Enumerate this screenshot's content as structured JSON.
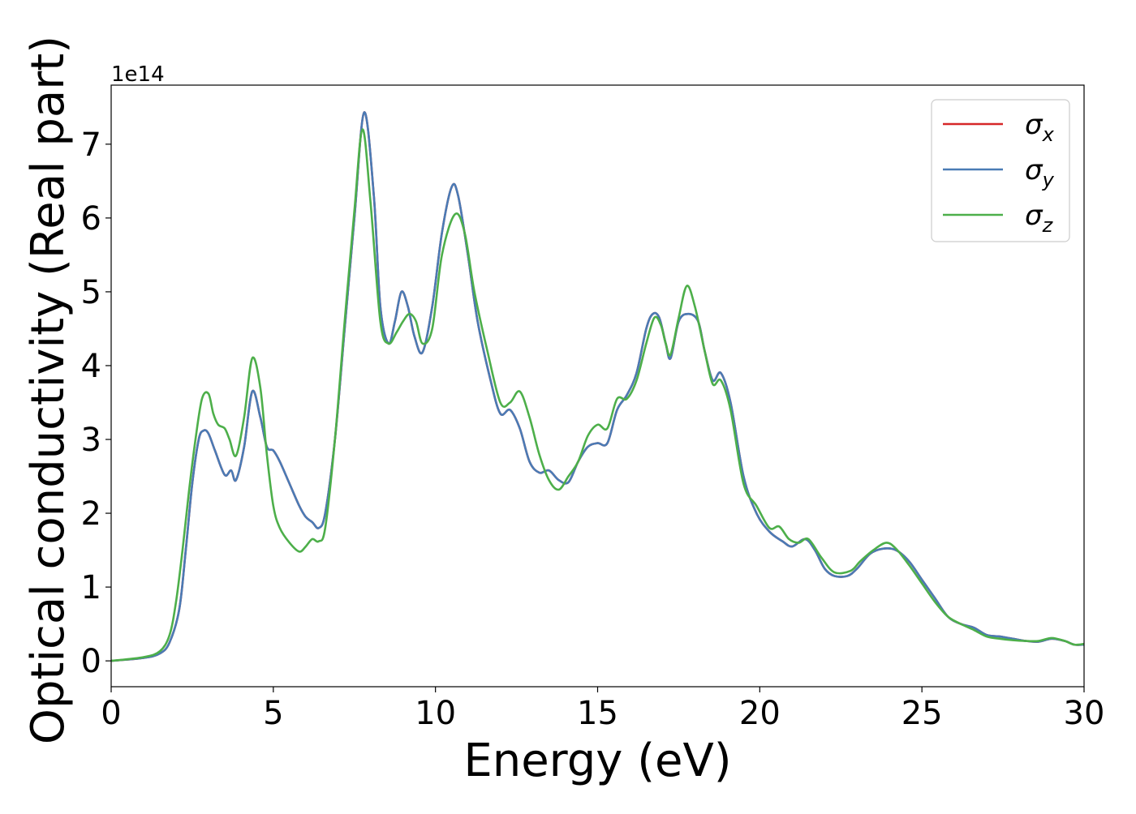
{
  "chart_data": {
    "type": "line",
    "title": "",
    "xlabel": "Energy (eV)",
    "ylabel": "Optical conductivity (Real part)",
    "y_offset_label": "1e14",
    "xlim": [
      0,
      30
    ],
    "ylim": [
      -0.35,
      7.8
    ],
    "xticks": [
      0,
      5,
      10,
      15,
      20,
      25,
      30
    ],
    "xtick_labels": [
      "0",
      "5",
      "10",
      "15",
      "20",
      "25",
      "30"
    ],
    "yticks": [
      0,
      1,
      2,
      3,
      4,
      5,
      6,
      7
    ],
    "ytick_labels": [
      "0",
      "1",
      "2",
      "3",
      "4",
      "5",
      "6",
      "7"
    ],
    "grid": false,
    "legend_position": "top-right",
    "series": [
      {
        "name": "σx",
        "symbol": "σ",
        "subscript": "x",
        "color": "#d62728",
        "x": [
          0,
          1,
          1.5,
          1.8,
          2.1,
          2.3,
          2.5,
          2.7,
          2.85,
          3.0,
          3.2,
          3.5,
          3.7,
          3.85,
          4.1,
          4.35,
          4.6,
          4.8,
          5.0,
          5.2,
          5.5,
          5.8,
          6.0,
          6.2,
          6.4,
          6.6,
          6.9,
          7.2,
          7.5,
          7.8,
          8.1,
          8.3,
          8.55,
          8.75,
          8.95,
          9.15,
          9.35,
          9.6,
          9.9,
          10.2,
          10.5,
          10.7,
          11.0,
          11.3,
          11.7,
          12.0,
          12.3,
          12.6,
          12.9,
          13.2,
          13.5,
          13.8,
          14.1,
          14.4,
          14.7,
          15.0,
          15.3,
          15.6,
          15.9,
          16.2,
          16.5,
          16.7,
          16.9,
          17.1,
          17.25,
          17.5,
          17.8,
          18.1,
          18.3,
          18.55,
          18.8,
          19.1,
          19.5,
          19.9,
          20.3,
          20.7,
          21.0,
          21.4,
          21.7,
          22.0,
          22.3,
          22.7,
          23.0,
          23.4,
          23.8,
          24.2,
          24.6,
          25.0,
          25.4,
          25.8,
          26.2,
          26.6,
          27.0,
          27.4,
          27.8,
          28.2,
          28.6,
          29.0,
          29.4,
          29.7,
          30.0
        ],
        "values": [
          0,
          0.04,
          0.1,
          0.25,
          0.7,
          1.5,
          2.4,
          3.0,
          3.12,
          3.08,
          2.85,
          2.52,
          2.58,
          2.45,
          2.9,
          3.65,
          3.3,
          2.9,
          2.85,
          2.7,
          2.4,
          2.1,
          1.95,
          1.88,
          1.8,
          2.0,
          3.0,
          4.5,
          6.0,
          7.43,
          6.3,
          4.8,
          4.3,
          4.6,
          5.0,
          4.8,
          4.4,
          4.18,
          4.8,
          5.8,
          6.42,
          6.3,
          5.5,
          4.6,
          3.8,
          3.35,
          3.4,
          3.15,
          2.7,
          2.55,
          2.58,
          2.45,
          2.42,
          2.7,
          2.9,
          2.95,
          2.95,
          3.4,
          3.6,
          3.9,
          4.5,
          4.7,
          4.65,
          4.3,
          4.1,
          4.6,
          4.7,
          4.6,
          4.2,
          3.8,
          3.9,
          3.5,
          2.5,
          2.0,
          1.75,
          1.62,
          1.55,
          1.65,
          1.5,
          1.25,
          1.15,
          1.15,
          1.25,
          1.45,
          1.52,
          1.5,
          1.35,
          1.1,
          0.85,
          0.6,
          0.5,
          0.45,
          0.35,
          0.33,
          0.3,
          0.27,
          0.26,
          0.3,
          0.27,
          0.22,
          0.22
        ]
      },
      {
        "name": "σy",
        "symbol": "σ",
        "subscript": "y",
        "color": "#4a7bb5",
        "x": [
          0,
          1,
          1.5,
          1.8,
          2.1,
          2.3,
          2.5,
          2.7,
          2.85,
          3.0,
          3.2,
          3.5,
          3.7,
          3.85,
          4.1,
          4.35,
          4.6,
          4.8,
          5.0,
          5.2,
          5.5,
          5.8,
          6.0,
          6.2,
          6.4,
          6.6,
          6.9,
          7.2,
          7.5,
          7.8,
          8.1,
          8.3,
          8.55,
          8.75,
          8.95,
          9.15,
          9.35,
          9.6,
          9.9,
          10.2,
          10.5,
          10.7,
          11.0,
          11.3,
          11.7,
          12.0,
          12.3,
          12.6,
          12.9,
          13.2,
          13.5,
          13.8,
          14.1,
          14.4,
          14.7,
          15.0,
          15.3,
          15.6,
          15.9,
          16.2,
          16.5,
          16.7,
          16.9,
          17.1,
          17.25,
          17.5,
          17.8,
          18.1,
          18.3,
          18.55,
          18.8,
          19.1,
          19.5,
          19.9,
          20.3,
          20.7,
          21.0,
          21.4,
          21.7,
          22.0,
          22.3,
          22.7,
          23.0,
          23.4,
          23.8,
          24.2,
          24.6,
          25.0,
          25.4,
          25.8,
          26.2,
          26.6,
          27.0,
          27.4,
          27.8,
          28.2,
          28.6,
          29.0,
          29.4,
          29.7,
          30.0
        ],
        "values": [
          0,
          0.04,
          0.1,
          0.25,
          0.7,
          1.5,
          2.4,
          3.0,
          3.12,
          3.08,
          2.85,
          2.52,
          2.58,
          2.45,
          2.9,
          3.65,
          3.3,
          2.9,
          2.85,
          2.7,
          2.4,
          2.1,
          1.95,
          1.88,
          1.8,
          2.0,
          3.0,
          4.5,
          6.0,
          7.43,
          6.3,
          4.8,
          4.3,
          4.6,
          5.0,
          4.8,
          4.4,
          4.18,
          4.8,
          5.8,
          6.42,
          6.3,
          5.5,
          4.6,
          3.8,
          3.35,
          3.4,
          3.15,
          2.7,
          2.55,
          2.58,
          2.45,
          2.42,
          2.7,
          2.9,
          2.95,
          2.95,
          3.4,
          3.6,
          3.9,
          4.5,
          4.7,
          4.65,
          4.3,
          4.1,
          4.6,
          4.7,
          4.6,
          4.2,
          3.8,
          3.9,
          3.5,
          2.5,
          2.0,
          1.75,
          1.62,
          1.55,
          1.65,
          1.5,
          1.25,
          1.15,
          1.15,
          1.25,
          1.45,
          1.52,
          1.5,
          1.35,
          1.1,
          0.85,
          0.6,
          0.5,
          0.45,
          0.35,
          0.33,
          0.3,
          0.27,
          0.26,
          0.3,
          0.27,
          0.22,
          0.22
        ]
      },
      {
        "name": "σz",
        "symbol": "σ",
        "subscript": "z",
        "color": "#4daf4a",
        "x": [
          0,
          1,
          1.5,
          1.8,
          2.0,
          2.2,
          2.4,
          2.6,
          2.8,
          3.0,
          3.15,
          3.3,
          3.5,
          3.65,
          3.85,
          4.1,
          4.35,
          4.6,
          4.8,
          5.0,
          5.2,
          5.5,
          5.8,
          6.0,
          6.2,
          6.4,
          6.6,
          6.9,
          7.2,
          7.5,
          7.75,
          8.0,
          8.3,
          8.55,
          8.8,
          9.0,
          9.2,
          9.4,
          9.6,
          9.9,
          10.2,
          10.6,
          10.9,
          11.2,
          11.6,
          12.0,
          12.3,
          12.6,
          12.9,
          13.2,
          13.5,
          13.8,
          14.1,
          14.4,
          14.7,
          15.0,
          15.3,
          15.6,
          15.9,
          16.2,
          16.5,
          16.75,
          16.95,
          17.1,
          17.25,
          17.5,
          17.75,
          18.0,
          18.3,
          18.55,
          18.8,
          19.1,
          19.5,
          19.9,
          20.3,
          20.6,
          20.9,
          21.2,
          21.5,
          21.9,
          22.3,
          22.8,
          23.1,
          23.5,
          23.9,
          24.2,
          24.6,
          25.0,
          25.4,
          25.8,
          26.2,
          26.6,
          27.0,
          27.4,
          27.8,
          28.2,
          28.6,
          29.0,
          29.4,
          29.7,
          30.0
        ],
        "values": [
          0,
          0.05,
          0.13,
          0.35,
          0.8,
          1.5,
          2.3,
          3.0,
          3.55,
          3.62,
          3.35,
          3.2,
          3.15,
          3.0,
          2.78,
          3.3,
          4.1,
          3.7,
          2.8,
          2.1,
          1.8,
          1.6,
          1.48,
          1.55,
          1.65,
          1.62,
          1.8,
          3.0,
          4.6,
          6.1,
          7.2,
          6.2,
          4.6,
          4.3,
          4.45,
          4.6,
          4.7,
          4.6,
          4.3,
          4.5,
          5.5,
          6.05,
          5.8,
          5.0,
          4.2,
          3.5,
          3.5,
          3.65,
          3.3,
          2.8,
          2.45,
          2.32,
          2.5,
          2.7,
          3.05,
          3.2,
          3.15,
          3.55,
          3.55,
          3.8,
          4.3,
          4.65,
          4.55,
          4.3,
          4.15,
          4.65,
          5.08,
          4.8,
          4.2,
          3.75,
          3.8,
          3.4,
          2.4,
          2.1,
          1.8,
          1.82,
          1.65,
          1.6,
          1.65,
          1.4,
          1.2,
          1.22,
          1.35,
          1.5,
          1.6,
          1.52,
          1.3,
          1.05,
          0.8,
          0.6,
          0.5,
          0.42,
          0.33,
          0.3,
          0.28,
          0.27,
          0.27,
          0.31,
          0.27,
          0.22,
          0.23
        ]
      }
    ]
  }
}
